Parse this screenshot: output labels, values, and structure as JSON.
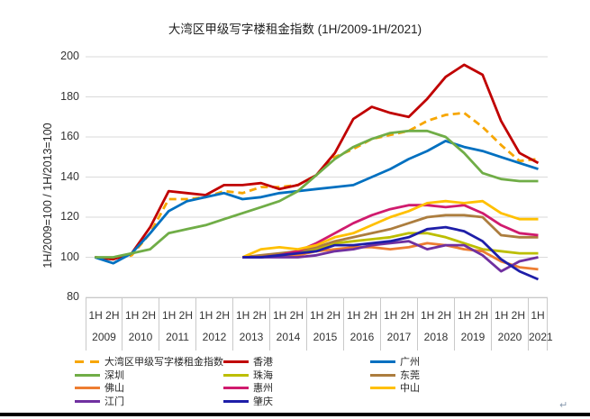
{
  "title": "大湾区甲级写字楼租金指数 (1H/2009-1H/2021)",
  "y_axis": {
    "label": "1H/2009=100 / 1H/2013=100",
    "ticks": [
      200,
      180,
      160,
      140,
      120,
      100,
      80
    ],
    "min": 80,
    "max": 200
  },
  "x_axis": {
    "years": [
      {
        "year": "2009",
        "halves": [
          "1H",
          "2H"
        ]
      },
      {
        "year": "2010",
        "halves": [
          "1H",
          "2H"
        ]
      },
      {
        "year": "2011",
        "halves": [
          "1H",
          "2H"
        ]
      },
      {
        "year": "2012",
        "halves": [
          "1H",
          "2H"
        ]
      },
      {
        "year": "2013",
        "halves": [
          "1H",
          "2H"
        ]
      },
      {
        "year": "2014",
        "halves": [
          "1H",
          "2H"
        ]
      },
      {
        "year": "2015",
        "halves": [
          "1H",
          "2H"
        ]
      },
      {
        "year": "2016",
        "halves": [
          "1H",
          "2H"
        ]
      },
      {
        "year": "2017",
        "halves": [
          "1H",
          "2H"
        ]
      },
      {
        "year": "2018",
        "halves": [
          "1H",
          "2H"
        ]
      },
      {
        "year": "2019",
        "halves": [
          "1H",
          "2H"
        ]
      },
      {
        "year": "2020",
        "halves": [
          "1H",
          "2H"
        ]
      },
      {
        "year": "2021",
        "halves": [
          "1H"
        ]
      }
    ]
  },
  "return_mark": "↵",
  "chart_data": {
    "type": "line",
    "x": [
      "1H/2009",
      "2H/2009",
      "1H/2010",
      "2H/2010",
      "1H/2011",
      "2H/2011",
      "1H/2012",
      "2H/2012",
      "1H/2013",
      "2H/2013",
      "1H/2014",
      "2H/2014",
      "1H/2015",
      "2H/2015",
      "1H/2016",
      "2H/2016",
      "1H/2017",
      "2H/2017",
      "1H/2018",
      "2H/2018",
      "1H/2019",
      "2H/2019",
      "1H/2020",
      "2H/2020",
      "1H/2021"
    ],
    "title": "大湾区甲级写字楼租金指数 (1H/2009-1H/2021)",
    "ylabel": "1H/2009=100 / 1H/2013=100",
    "ylim": [
      80,
      200
    ],
    "grid": "horizontal",
    "legend_position": "bottom",
    "series": [
      {
        "name": "大湾区甲级写字楼租金指数",
        "color": "#F7A600",
        "dashed": true,
        "values": [
          100,
          99,
          101,
          112,
          129,
          129,
          130,
          133,
          132,
          135,
          135,
          136,
          141,
          150,
          154,
          159,
          161,
          163,
          168,
          171,
          172,
          165,
          156,
          148,
          149
        ]
      },
      {
        "name": "香港",
        "color": "#C00000",
        "dashed": false,
        "values": [
          100,
          99,
          102,
          115,
          133,
          132,
          131,
          136,
          136,
          137,
          134,
          136,
          141,
          152,
          169,
          175,
          172,
          170,
          179,
          190,
          196,
          191,
          168,
          152,
          147
        ]
      },
      {
        "name": "广州",
        "color": "#0070C0",
        "dashed": false,
        "values": [
          100,
          97,
          102,
          112,
          123,
          128,
          130,
          132,
          129,
          130,
          132,
          133,
          134,
          135,
          136,
          140,
          144,
          149,
          153,
          158,
          155,
          153,
          150,
          147,
          144
        ]
      },
      {
        "name": "深圳",
        "color": "#70AD47",
        "dashed": false,
        "values": [
          100,
          100,
          102,
          104,
          112,
          114,
          116,
          119,
          122,
          125,
          128,
          133,
          141,
          149,
          155,
          159,
          162,
          163,
          163,
          160,
          152,
          142,
          139,
          138,
          138
        ]
      },
      {
        "name": "珠海",
        "color": "#BCBE00",
        "dashed": false,
        "values": [
          null,
          null,
          null,
          null,
          null,
          null,
          null,
          null,
          100,
          100,
          101,
          102,
          104,
          107,
          108,
          109,
          110,
          112,
          112,
          110,
          107,
          104,
          103,
          102,
          102
        ]
      },
      {
        "name": "东莞",
        "color": "#AC7D3E",
        "dashed": false,
        "values": [
          null,
          null,
          null,
          null,
          null,
          null,
          null,
          null,
          100,
          101,
          102,
          103,
          105,
          108,
          110,
          112,
          114,
          117,
          120,
          121,
          121,
          120,
          111,
          110,
          110
        ]
      },
      {
        "name": "佛山",
        "color": "#ED7D31",
        "dashed": false,
        "values": [
          null,
          null,
          null,
          null,
          null,
          null,
          null,
          null,
          100,
          100,
          101,
          101,
          103,
          104,
          105,
          105,
          104,
          105,
          107,
          106,
          104,
          103,
          98,
          95,
          94
        ]
      },
      {
        "name": "惠州",
        "color": "#D01B6E",
        "dashed": false,
        "values": [
          null,
          null,
          null,
          null,
          null,
          null,
          null,
          null,
          100,
          100,
          101,
          103,
          107,
          112,
          117,
          121,
          124,
          126,
          126,
          125,
          126,
          122,
          116,
          112,
          111
        ]
      },
      {
        "name": "中山",
        "color": "#FFC000",
        "dashed": false,
        "values": [
          null,
          null,
          null,
          null,
          null,
          null,
          null,
          null,
          100,
          104,
          105,
          104,
          106,
          110,
          112,
          116,
          120,
          123,
          127,
          128,
          127,
          128,
          122,
          119,
          119
        ]
      },
      {
        "name": "江门",
        "color": "#7030A0",
        "dashed": false,
        "values": [
          null,
          null,
          null,
          null,
          null,
          null,
          null,
          null,
          100,
          100,
          100,
          100,
          101,
          103,
          104,
          106,
          107,
          108,
          104,
          106,
          106,
          101,
          93,
          98,
          100
        ]
      },
      {
        "name": "肇庆",
        "color": "#1E1EA8",
        "dashed": false,
        "values": [
          null,
          null,
          null,
          null,
          null,
          null,
          null,
          null,
          100,
          100,
          101,
          102,
          103,
          106,
          106,
          107,
          108,
          110,
          114,
          115,
          113,
          108,
          99,
          93,
          89
        ]
      }
    ]
  }
}
